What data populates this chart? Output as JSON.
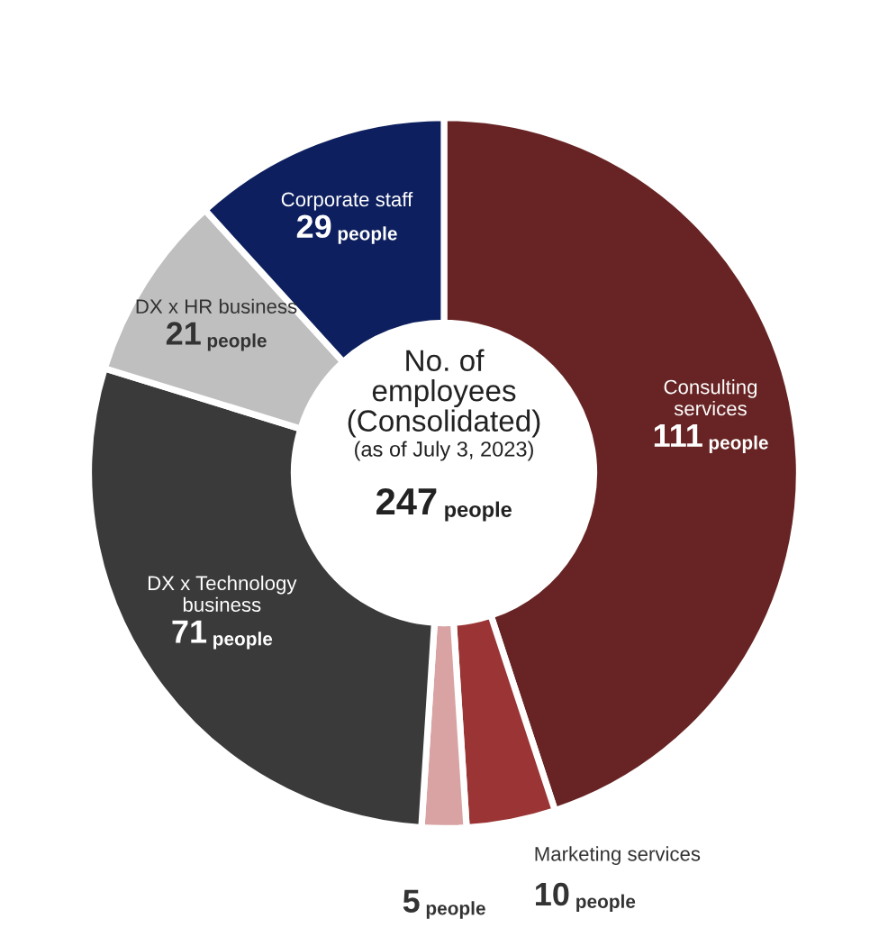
{
  "chart_data": {
    "type": "donut",
    "title": "No. of\nemployees\n(Consolidated)",
    "subtitle": "(as of July 3, 2023)",
    "annotations": [
      "247 people"
    ],
    "categories": [
      "Consulting\nservices",
      "Marketing services",
      null,
      "DX x Technology\nbusiness",
      "DX x HR business",
      "Corporate staff"
    ],
    "values": [
      111,
      10,
      5,
      71,
      21,
      29
    ],
    "value_labels": [
      "111 people",
      "10 people",
      "5 people",
      "71 people",
      "21 people",
      "29 people"
    ],
    "colors": [
      "#682424",
      "#9b3434",
      "#d9a3a3",
      "#3a3a3a",
      "#bfbfbf",
      "#0d1f5e"
    ],
    "legend": false
  }
}
